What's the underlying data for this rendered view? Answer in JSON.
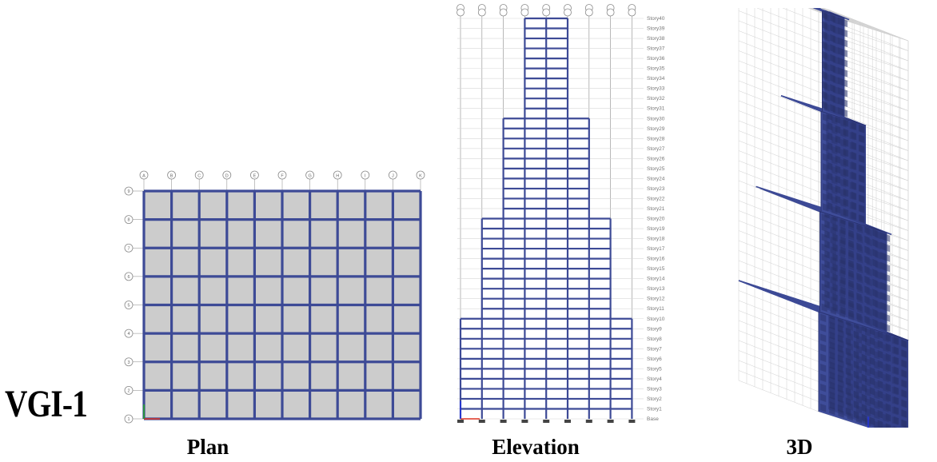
{
  "model_id": "VGI-1",
  "panels": {
    "plan": {
      "caption": "Plan"
    },
    "elevation": {
      "caption": "Elevation"
    },
    "three_d": {
      "caption": "3D"
    }
  },
  "plan": {
    "grid_x_labels": [
      "A",
      "B",
      "C",
      "D",
      "E",
      "F",
      "G",
      "H",
      "I",
      "J",
      "K"
    ],
    "grid_y_labels": [
      "1",
      "2",
      "3",
      "4",
      "5",
      "6",
      "7",
      "8",
      "9"
    ],
    "bays_x": 10,
    "bays_y": 8
  },
  "elevation": {
    "base_label": "Base",
    "story_labels": [
      "Story1",
      "Story2",
      "Story3",
      "Story4",
      "Story5",
      "Story6",
      "Story7",
      "Story8",
      "Story9",
      "Story10",
      "Story11",
      "Story12",
      "Story13",
      "Story14",
      "Story15",
      "Story16",
      "Story17",
      "Story18",
      "Story19",
      "Story20",
      "Story21",
      "Story22",
      "Story23",
      "Story24",
      "Story25",
      "Story26",
      "Story27",
      "Story28",
      "Story29",
      "Story30",
      "Story31",
      "Story32",
      "Story33",
      "Story34",
      "Story35",
      "Story36",
      "Story37",
      "Story38",
      "Story39",
      "Story40"
    ],
    "setbacks": [
      {
        "from_story": 1,
        "to_story": 10,
        "bays": 8
      },
      {
        "from_story": 11,
        "to_story": 20,
        "bays": 6
      },
      {
        "from_story": 21,
        "to_story": 30,
        "bays": 4
      },
      {
        "from_story": 31,
        "to_story": 40,
        "bays": 2
      }
    ]
  },
  "colors": {
    "frame": "#3d4a96",
    "slab": "#cccccc",
    "grid_line": "#9a9a9a",
    "ghost_grid": "#cfcfcf"
  }
}
